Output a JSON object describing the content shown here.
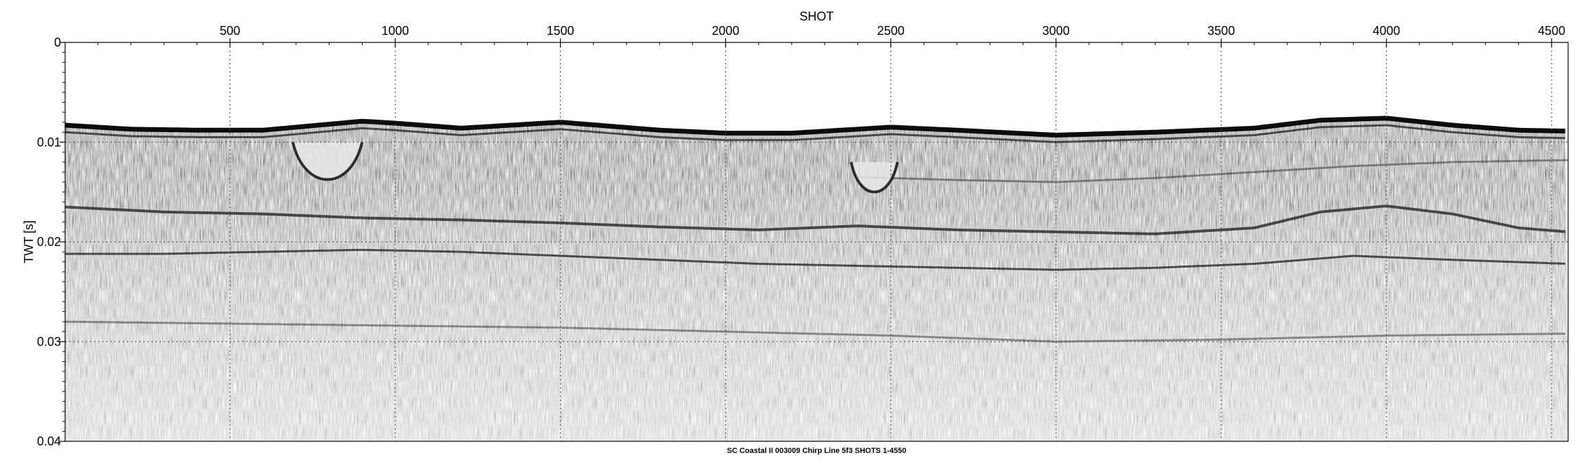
{
  "chart_data": {
    "type": "heatmap",
    "description_kind": "seismic-chirp-profile",
    "title": "SC Coastal II 003009 Chirp Line 5f3 SHOTS 1-4550",
    "xlabel": "SHOT",
    "ylabel": "TWT [s]",
    "xlim": [
      1,
      4550
    ],
    "ylim": [
      0,
      0.04
    ],
    "y_inverted": true,
    "x_axis_position": "top",
    "x_ticks": [
      500,
      1000,
      1500,
      2000,
      2500,
      3000,
      3500,
      4000,
      4500
    ],
    "x_tick_labels": [
      "500",
      "1000",
      "1500",
      "2000",
      "2500",
      "3000",
      "3500",
      "4000",
      "4500"
    ],
    "y_ticks": [
      0,
      0.01,
      0.02,
      0.03,
      0.04
    ],
    "y_tick_labels": [
      "0",
      "0.01",
      "0.02",
      "0.03",
      "0.04"
    ],
    "grid": true,
    "colormap": "grayscale",
    "seafloor_twt": {
      "shot": [
        1,
        200,
        400,
        600,
        800,
        900,
        1000,
        1200,
        1500,
        1800,
        2000,
        2200,
        2400,
        2500,
        2700,
        3000,
        3300,
        3600,
        3800,
        4000,
        4200,
        4400,
        4550
      ],
      "twt": [
        0.0083,
        0.0087,
        0.0088,
        0.0088,
        0.0082,
        0.0079,
        0.0081,
        0.0086,
        0.008,
        0.0088,
        0.0091,
        0.0091,
        0.0087,
        0.0085,
        0.0088,
        0.0093,
        0.009,
        0.0086,
        0.0078,
        0.0076,
        0.0083,
        0.0088,
        0.0089
      ]
    },
    "reflectors": [
      {
        "shot": [
          1,
          300,
          600,
          900,
          1200,
          1500,
          1800,
          2100,
          2400,
          2700,
          3000,
          3300,
          3600,
          3800,
          4000,
          4200,
          4400,
          4550
        ],
        "twt": [
          0.0165,
          0.017,
          0.0172,
          0.0176,
          0.0178,
          0.0181,
          0.0185,
          0.0188,
          0.0184,
          0.0188,
          0.019,
          0.0192,
          0.0186,
          0.017,
          0.0164,
          0.0172,
          0.0186,
          0.019
        ]
      },
      {
        "shot": [
          1,
          300,
          600,
          900,
          1200,
          1500,
          1800,
          2100,
          2400,
          2700,
          3000,
          3300,
          3600,
          3900,
          4200,
          4550
        ],
        "twt": [
          0.0212,
          0.0212,
          0.021,
          0.0208,
          0.021,
          0.0214,
          0.0218,
          0.0222,
          0.0224,
          0.0226,
          0.0228,
          0.0226,
          0.0222,
          0.0214,
          0.0218,
          0.0222
        ]
      },
      {
        "shot": [
          1,
          500,
          1000,
          1500,
          2000,
          2500,
          3000,
          3500,
          4000,
          4550
        ],
        "twt": [
          0.028,
          0.0282,
          0.0284,
          0.0286,
          0.029,
          0.0294,
          0.03,
          0.0298,
          0.0294,
          0.0292
        ]
      },
      {
        "shot": [
          2400,
          2700,
          3000,
          3300,
          3600,
          3900,
          4200,
          4550
        ],
        "twt": [
          0.0135,
          0.0138,
          0.014,
          0.0136,
          0.013,
          0.0124,
          0.012,
          0.0118
        ]
      }
    ],
    "channel_features": [
      {
        "shot_start": 690,
        "shot_end": 900,
        "top_twt": 0.01,
        "base_twt": 0.015
      },
      {
        "shot_start": 2380,
        "shot_end": 2520,
        "top_twt": 0.012,
        "base_twt": 0.016
      }
    ]
  }
}
